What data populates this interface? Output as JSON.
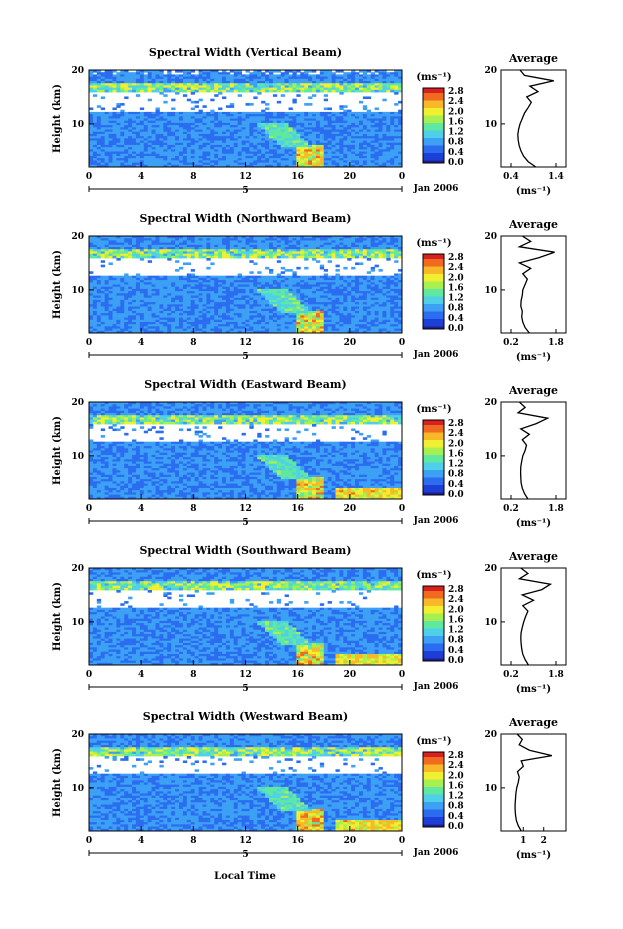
{
  "figure": {
    "xlabel": "Local Time"
  },
  "chart_data": [
    {
      "type": "heatmap",
      "title": "Spectral Width (Vertical Beam)",
      "ylabel": "Height (km)",
      "y_ticks": [
        "20",
        "10"
      ],
      "x_ticks": [
        "0",
        "4",
        "8",
        "12",
        "16",
        "20",
        "0"
      ],
      "x_date": "5",
      "date_label": "Jan 2006",
      "colorbar": {
        "unit": "(ms⁻¹)",
        "ticks": [
          "2.8",
          "2.4",
          "2.0",
          "1.6",
          "1.2",
          "0.8",
          "0.4",
          "0.0"
        ]
      },
      "profile": {
        "title": "Average",
        "y_ticks": [
          "20",
          "10"
        ],
        "x_ticks": [
          "0.4",
          "1.4"
        ],
        "xlim": [
          0.4,
          1.4
        ],
        "xlabel": "(ms⁻¹)",
        "heights": [
          2,
          3,
          4,
          5,
          6,
          7,
          8,
          9,
          10,
          11,
          12,
          13,
          14,
          15,
          16,
          17,
          18,
          19,
          20
        ],
        "values": [
          0.95,
          0.78,
          0.68,
          0.62,
          0.58,
          0.56,
          0.55,
          0.57,
          0.6,
          0.65,
          0.7,
          0.78,
          0.85,
          0.75,
          1.0,
          0.82,
          1.35,
          0.7,
          0.6
        ]
      }
    },
    {
      "type": "heatmap",
      "title": "Spectral Width (Northward Beam)",
      "ylabel": "Height (km)",
      "y_ticks": [
        "20",
        "10"
      ],
      "x_ticks": [
        "0",
        "4",
        "8",
        "12",
        "16",
        "20",
        "0"
      ],
      "x_date": "5",
      "date_label": "Jan 2006",
      "colorbar": {
        "unit": "(ms⁻¹)",
        "ticks": [
          "2.8",
          "2.4",
          "2.0",
          "1.6",
          "1.2",
          "0.8",
          "0.4",
          "0.0"
        ]
      },
      "profile": {
        "title": "Average",
        "y_ticks": [
          "20",
          "10"
        ],
        "x_ticks": [
          "0.2",
          "1.8"
        ],
        "xlim": [
          0.2,
          1.8
        ],
        "xlabel": "(ms⁻¹)",
        "heights": [
          2,
          3,
          4,
          5,
          6,
          7,
          8,
          9,
          10,
          11,
          12,
          13,
          14,
          15,
          16,
          17,
          18,
          19,
          20
        ],
        "values": [
          0.85,
          0.7,
          0.62,
          0.58,
          0.6,
          0.55,
          0.56,
          0.6,
          0.62,
          0.7,
          0.78,
          0.62,
          0.9,
          0.5,
          1.2,
          1.75,
          0.5,
          0.9,
          0.6
        ]
      }
    },
    {
      "type": "heatmap",
      "title": "Spectral Width (Eastward Beam)",
      "ylabel": "Height (km)",
      "y_ticks": [
        "20",
        "10"
      ],
      "x_ticks": [
        "0",
        "4",
        "8",
        "12",
        "16",
        "20",
        "0"
      ],
      "x_date": "5",
      "date_label": "Jan 2006",
      "colorbar": {
        "unit": "(ms⁻¹)",
        "ticks": [
          "2.8",
          "2.4",
          "2.0",
          "1.6",
          "1.2",
          "0.8",
          "0.4",
          "0.0"
        ]
      },
      "profile": {
        "title": "Average",
        "y_ticks": [
          "20",
          "10"
        ],
        "x_ticks": [
          "0.2",
          "1.8"
        ],
        "xlim": [
          0.2,
          1.8
        ],
        "xlabel": "(ms⁻¹)",
        "heights": [
          2,
          3,
          4,
          5,
          6,
          7,
          8,
          9,
          10,
          11,
          12,
          13,
          14,
          15,
          16,
          17,
          18,
          19,
          20
        ],
        "values": [
          0.8,
          0.68,
          0.6,
          0.56,
          0.55,
          0.54,
          0.55,
          0.58,
          0.62,
          0.7,
          0.75,
          0.6,
          0.85,
          0.55,
          1.1,
          1.5,
          0.45,
          0.7,
          0.5
        ]
      }
    },
    {
      "type": "heatmap",
      "title": "Spectral Width (Southward Beam)",
      "ylabel": "Height (km)",
      "y_ticks": [
        "20",
        "10"
      ],
      "x_ticks": [
        "0",
        "4",
        "8",
        "12",
        "16",
        "20",
        "0"
      ],
      "x_date": "5",
      "date_label": "Jan 2006",
      "colorbar": {
        "unit": "(ms⁻¹)",
        "ticks": [
          "2.8",
          "2.4",
          "2.0",
          "1.6",
          "1.2",
          "0.8",
          "0.4",
          "0.0"
        ]
      },
      "profile": {
        "title": "Average",
        "y_ticks": [
          "20",
          "10"
        ],
        "x_ticks": [
          "0.2",
          "1.8"
        ],
        "xlim": [
          0.2,
          1.8
        ],
        "xlabel": "(ms⁻¹)",
        "heights": [
          2,
          3,
          4,
          5,
          6,
          7,
          8,
          9,
          10,
          11,
          12,
          13,
          14,
          15,
          16,
          17,
          18,
          19,
          20
        ],
        "values": [
          0.82,
          0.7,
          0.62,
          0.58,
          0.56,
          0.55,
          0.56,
          0.6,
          0.65,
          0.72,
          0.8,
          0.62,
          1.0,
          0.6,
          1.3,
          1.6,
          0.5,
          0.8,
          0.55
        ]
      }
    },
    {
      "type": "heatmap",
      "title": "Spectral Width (Westward Beam)",
      "ylabel": "Height (km)",
      "y_ticks": [
        "20",
        "10"
      ],
      "x_ticks": [
        "0",
        "4",
        "8",
        "12",
        "16",
        "20",
        "0"
      ],
      "x_date": "5",
      "date_label": "Jan 2006",
      "colorbar": {
        "unit": "(ms⁻¹)",
        "ticks": [
          "2.8",
          "2.4",
          "2.0",
          "1.6",
          "1.2",
          "0.8",
          "0.4",
          "0.0"
        ]
      },
      "profile": {
        "title": "Average",
        "y_ticks": [
          "20",
          "10"
        ],
        "x_ticks": [
          "1",
          "2"
        ],
        "xlim": [
          0.4,
          2.6
        ],
        "xlabel": "(ms⁻¹)",
        "heights": [
          2,
          3,
          4,
          5,
          6,
          7,
          8,
          9,
          10,
          11,
          12,
          13,
          14,
          15,
          16,
          17,
          18,
          19,
          20
        ],
        "values": [
          0.9,
          0.75,
          0.66,
          0.62,
          0.6,
          0.6,
          0.62,
          0.64,
          0.68,
          0.75,
          0.8,
          0.72,
          1.0,
          0.9,
          2.4,
          1.3,
          0.8,
          0.95,
          0.7
        ]
      }
    }
  ]
}
